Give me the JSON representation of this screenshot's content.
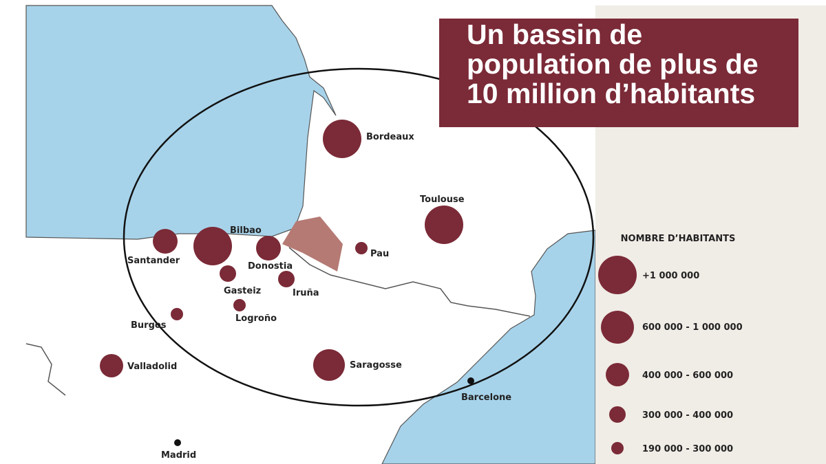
{
  "header": {
    "title_lines": [
      "Un bassin de",
      "population de plus de",
      "10 million d’habitants"
    ]
  },
  "legend": {
    "title": "NOMBRE D’HABITANTS",
    "items": [
      "+1 000 000",
      "600 000 - 1 000 000",
      "400 000 - 600 000",
      "300 000 - 400 000",
      "190 000 - 300 000"
    ]
  },
  "cities": [
    "Bordeaux",
    "Toulouse",
    "Bilbao",
    "Santander",
    "Donostia",
    "Pau",
    "Gasteiz",
    "Iruña",
    "Logroño",
    "Burgos",
    "Valladolid",
    "Saragosse",
    "Barcelone",
    "Madrid"
  ]
}
